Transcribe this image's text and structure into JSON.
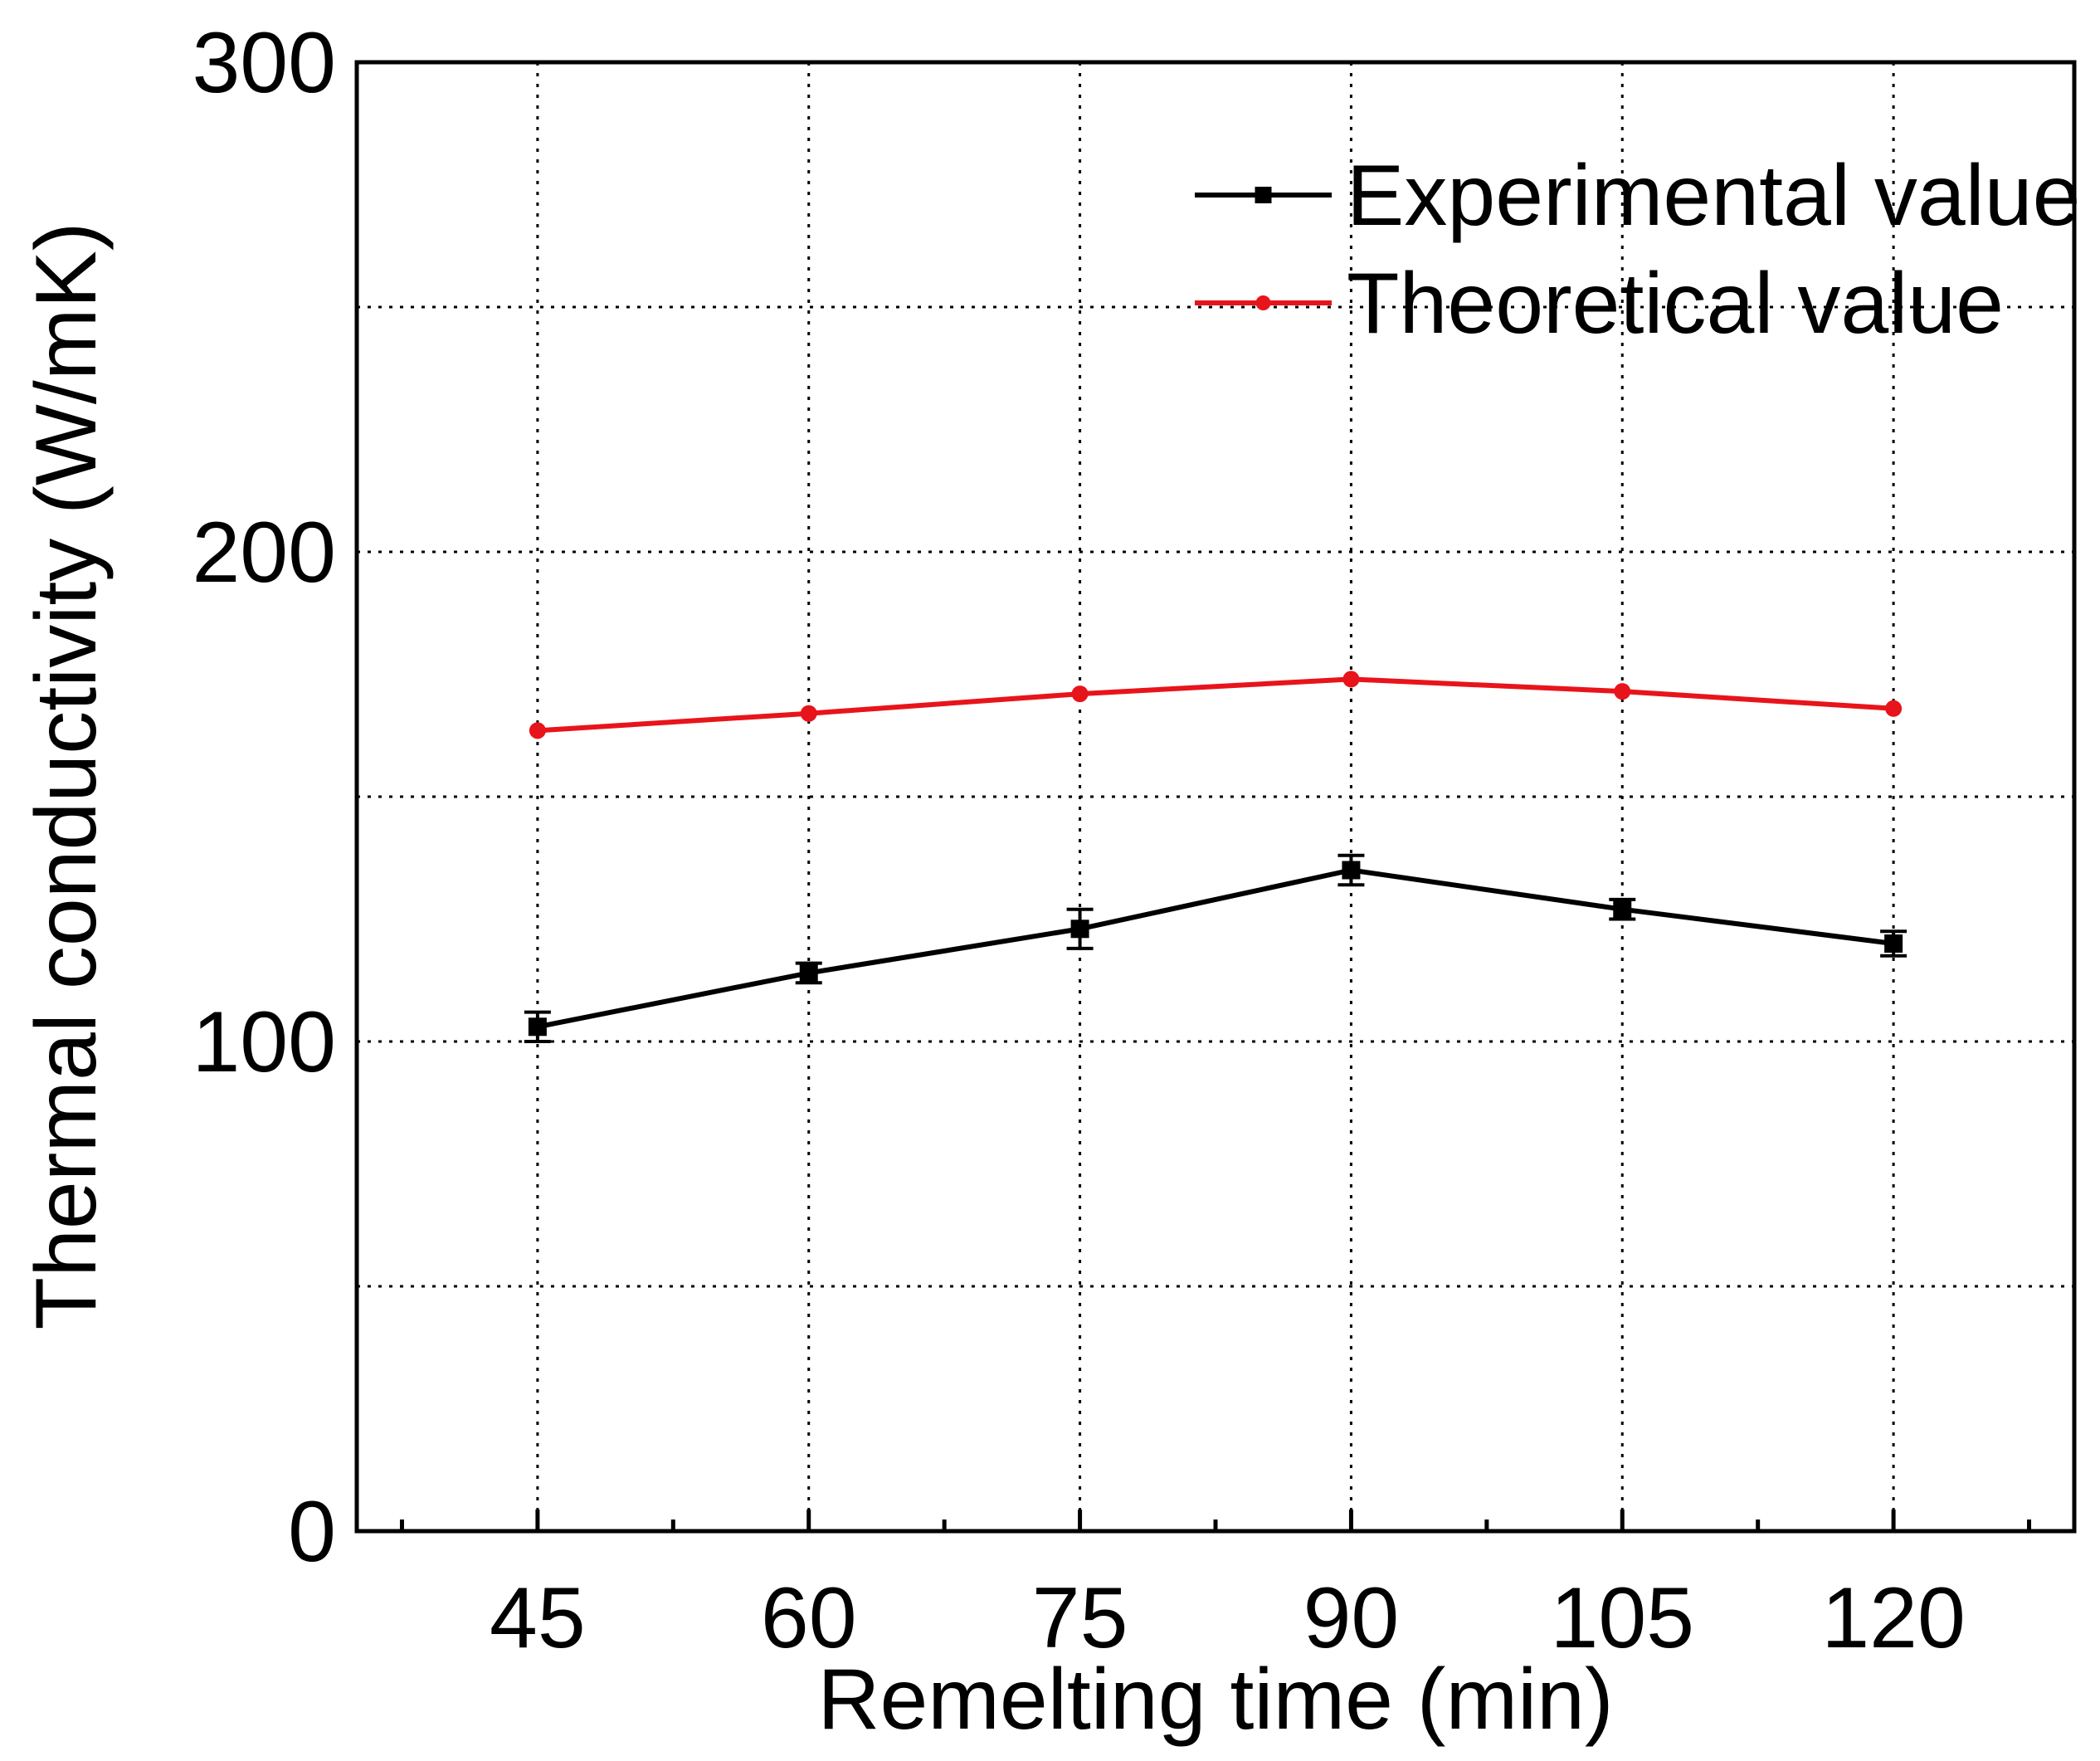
{
  "chart_data": {
    "type": "line",
    "title": "",
    "xlabel": "Remelting time (min)",
    "ylabel": "Thermal conductivity (W/mK)",
    "x": [
      45,
      60,
      75,
      90,
      105,
      120
    ],
    "x_ticks": [
      "45",
      "60",
      "75",
      "90",
      "105",
      "120"
    ],
    "y_ticks": [
      "0",
      "100",
      "200",
      "300"
    ],
    "xlim": [
      35,
      130
    ],
    "ylim": [
      0,
      300
    ],
    "grid": true,
    "legend_position": "top-right",
    "series": [
      {
        "name": "Experimental value",
        "color": "#000000",
        "marker": "square",
        "values": [
          103,
          114,
          123,
          135,
          127,
          120
        ],
        "errors": [
          3,
          2,
          4,
          3,
          2,
          2.5
        ]
      },
      {
        "name": "Theoretical value",
        "color": "#e8141b",
        "marker": "circle",
        "values": [
          163.5,
          167,
          171,
          174,
          171.5,
          168
        ]
      }
    ]
  }
}
